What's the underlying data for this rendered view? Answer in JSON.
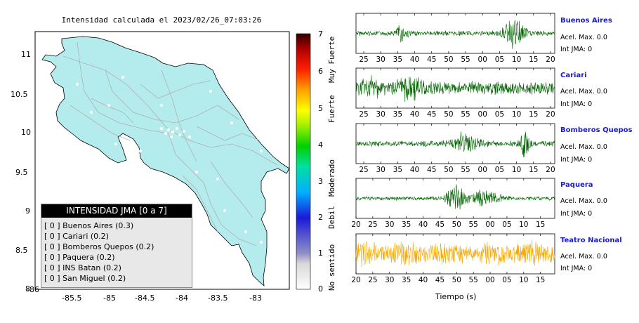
{
  "map": {
    "title": "Intensidad calculada el 2023/02/26_07:03:26",
    "x_ticks": [
      "-86",
      "-85.5",
      "-85",
      "-84.5",
      "-84",
      "-83.5",
      "-83"
    ],
    "y_ticks": [
      "11",
      "10.5",
      "10",
      "9.5",
      "9",
      "8.5",
      "8"
    ],
    "land_color": "#b4eced",
    "road_color": "#b0b0b0"
  },
  "colorbar": {
    "ticks": [
      "7",
      "6",
      "5",
      "4",
      "3",
      "2",
      "1",
      "0"
    ],
    "labels": [
      "Muy Fuerte",
      "Fuerte",
      "Moderado",
      "Debil",
      "No sentido"
    ]
  },
  "legend": {
    "title": "INTENSIDAD JMA [0 a 7]",
    "items": [
      "[ 0 ] Buenos Aires (0.3)",
      "[ 0 ] Cariari (0.2)",
      "[ 0 ] Bomberos Quepos (0.2)",
      "[ 0 ] Paquera (0.2)",
      "[ 0 ] INS Batan (0.2)",
      "[ 0 ] San Miguel (0.2)"
    ]
  },
  "chart_data": {
    "type": "line",
    "xlabel": "Tiempo (s)",
    "panels": [
      {
        "name": "Buenos Aires",
        "accel": "Acel. Max. 0.0",
        "int": "Int JMA: 0",
        "color": "#006400",
        "x_ticks": [
          "25",
          "30",
          "35",
          "40",
          "45",
          "50",
          "55",
          "00",
          "05",
          "10",
          "15",
          "20"
        ]
      },
      {
        "name": "Cariari",
        "accel": "Acel. Max. 0.0",
        "int": "Int JMA: 0",
        "color": "#006400",
        "x_ticks": [
          "25",
          "30",
          "35",
          "40",
          "45",
          "50",
          "55",
          "00",
          "05",
          "10",
          "15",
          "20"
        ]
      },
      {
        "name": "Bomberos Quepos",
        "accel": "Acel. Max. 0.0",
        "int": "Int JMA: 0",
        "color": "#006400",
        "x_ticks": [
          "25",
          "30",
          "35",
          "40",
          "45",
          "50",
          "55",
          "00",
          "05",
          "10",
          "15",
          "20"
        ]
      },
      {
        "name": "Paquera",
        "accel": "Acel. Max. 0.0",
        "int": "Int JMA: 0",
        "color": "#006400",
        "x_ticks": [
          "20",
          "25",
          "30",
          "35",
          "40",
          "45",
          "50",
          "55",
          "00",
          "05",
          "10",
          "15"
        ]
      },
      {
        "name": "Teatro Nacional",
        "accel": "Acel. Max. 0.0",
        "int": "Int JMA: 0",
        "color": "#f5a800",
        "x_ticks": [
          "20",
          "25",
          "30",
          "35",
          "40",
          "45",
          "50",
          "55",
          "00",
          "05",
          "10",
          "15"
        ]
      }
    ]
  }
}
